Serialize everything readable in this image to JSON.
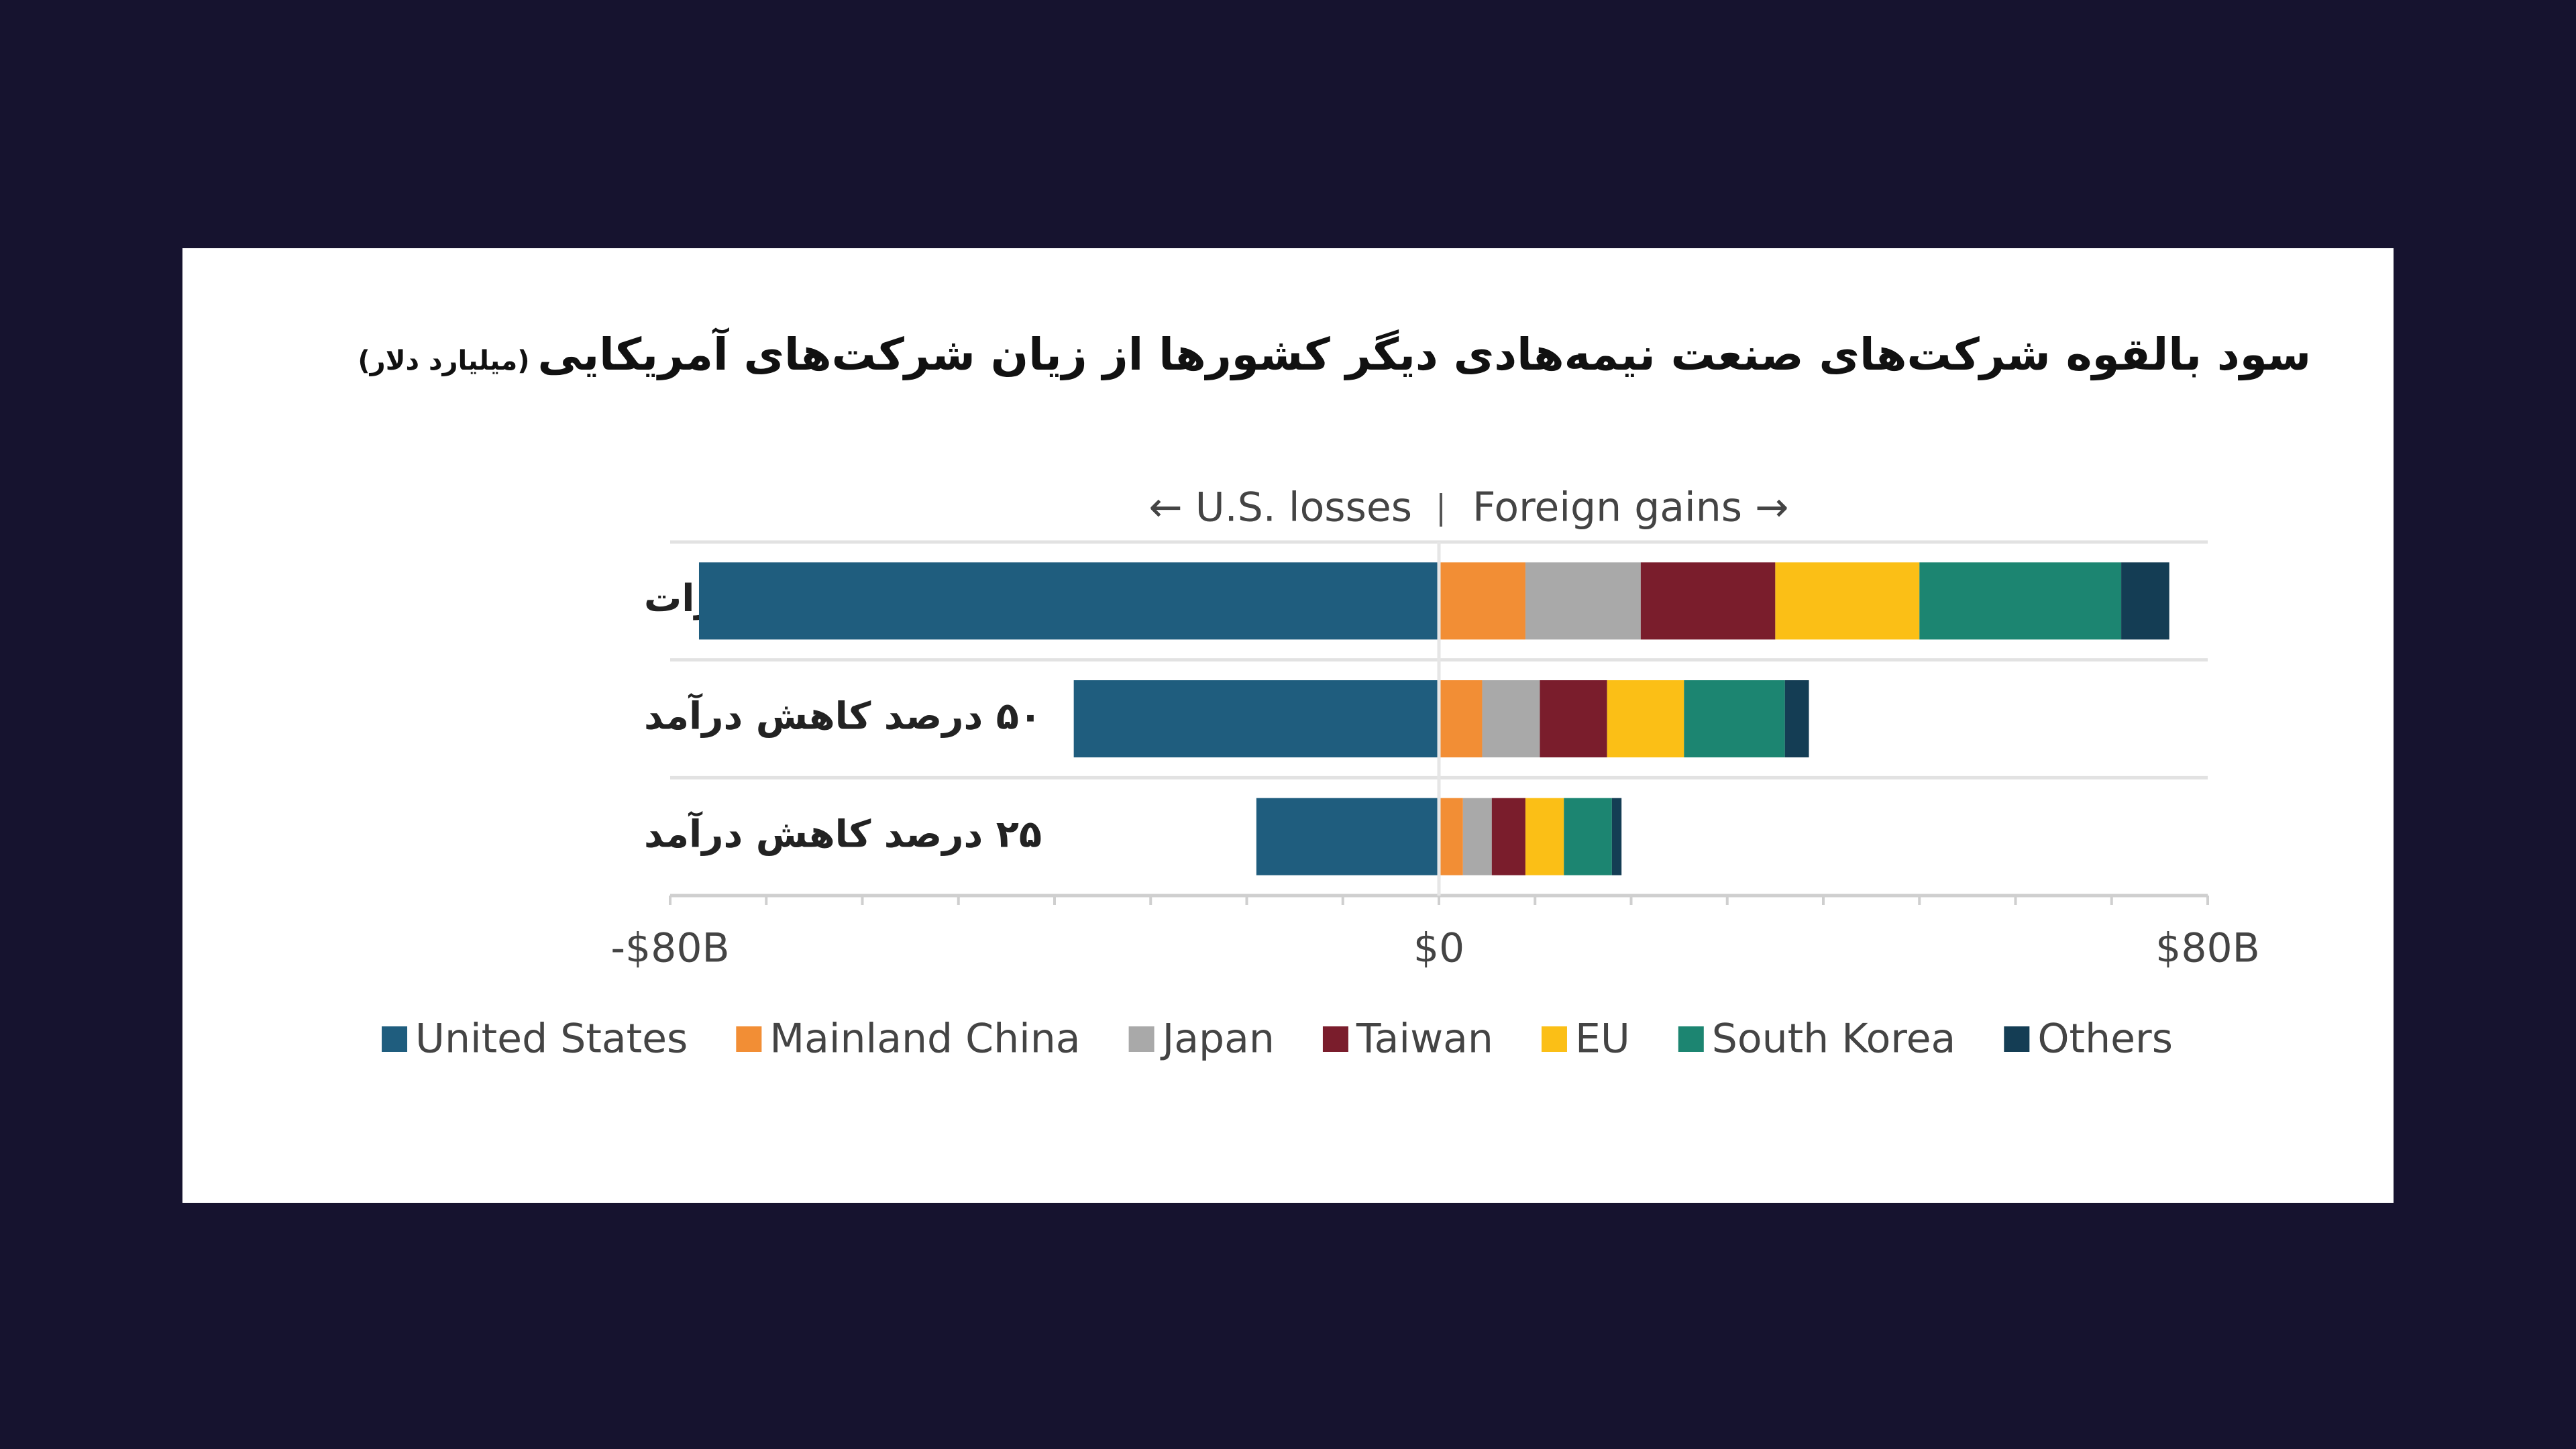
{
  "chart_data": {
    "type": "bar",
    "orientation": "horizontal",
    "stacked": true,
    "title": "سود بالقوه شرکت‌های صنعت نیمه‌هادی دیگر کشورها از زیان شرکت‌های آمریکایی",
    "subtitle": "(میلیارد دلار)",
    "annotations": [
      "← U.S. losses",
      "Foreign gains →"
    ],
    "categories": [
      "قطع کامل صادرات",
      "۵۰ درصد کاهش درآمد",
      "۲۵ درصد کاهش درآمد"
    ],
    "series": [
      {
        "name": "United States",
        "color": "#1f5d7e",
        "values": [
          -77,
          -38,
          -19
        ]
      },
      {
        "name": "Mainland China",
        "color": "#f28e35",
        "values": [
          9,
          4.5,
          2.5
        ]
      },
      {
        "name": "Japan",
        "color": "#a9a9a9",
        "values": [
          12,
          6,
          3
        ]
      },
      {
        "name": "Taiwan",
        "color": "#7a1d2c",
        "values": [
          14,
          7,
          3.5
        ]
      },
      {
        "name": "EU",
        "color": "#fbbf16",
        "values": [
          15,
          8,
          4
        ]
      },
      {
        "name": "South Korea",
        "color": "#1c8571",
        "values": [
          21,
          10.5,
          5
        ]
      },
      {
        "name": "Others",
        "color": "#143d54",
        "values": [
          5,
          2.5,
          1
        ]
      }
    ],
    "xlim": [
      -80,
      80
    ],
    "xticks": [
      {
        "value": -80,
        "label": "-$80B"
      },
      {
        "value": 0,
        "label": "$0"
      },
      {
        "value": 80,
        "label": "$80B"
      }
    ],
    "xminor_ticks": [
      -70,
      -60,
      -50,
      -40,
      -30,
      -20,
      -10,
      10,
      20,
      30,
      40,
      50,
      60,
      70
    ],
    "grid": true
  }
}
